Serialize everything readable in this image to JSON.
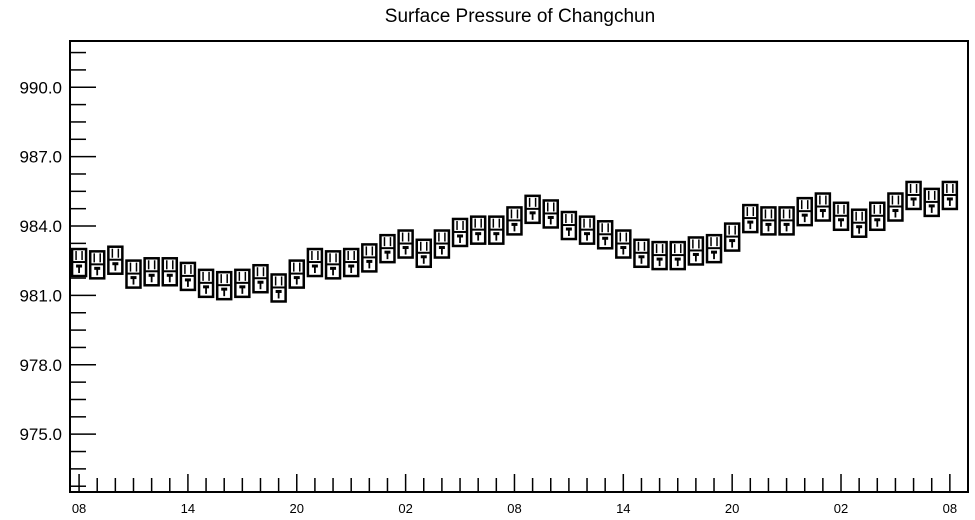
{
  "chart_data": {
    "type": "line",
    "title": "Surface Pressure of Changchun",
    "xlabel": "",
    "ylabel": "",
    "ylim": [
      972.5,
      992.0
    ],
    "yticks": [
      "975.0",
      "978.0",
      "981.0",
      "984.0",
      "987.0",
      "990.0"
    ],
    "ytick_values": [
      975.0,
      978.0,
      981.0,
      984.0,
      987.0,
      990.0
    ],
    "xtick_labels": [
      "08",
      "14",
      "20",
      "02",
      "08",
      "14",
      "20",
      "02",
      "08"
    ],
    "xtick_hours": [
      0,
      6,
      12,
      18,
      24,
      30,
      36,
      42,
      48
    ],
    "xlim": [
      -0.5,
      49.0
    ],
    "grid": false,
    "marker": "box-and-whisker",
    "series": [
      {
        "x": [
          0,
          1,
          2,
          3,
          4,
          5,
          6,
          7,
          8,
          9,
          10,
          11,
          12,
          13,
          14,
          15,
          16,
          17,
          18,
          19,
          20,
          21,
          22,
          23,
          24,
          25,
          26,
          27,
          28,
          29,
          30,
          31,
          32,
          33,
          34,
          35,
          36,
          37,
          38,
          39,
          40,
          41,
          42,
          43,
          44,
          45,
          46,
          47,
          48
        ],
        "values": [
          982.4,
          982.3,
          982.5,
          981.9,
          982.0,
          982.0,
          981.8,
          981.5,
          981.4,
          981.5,
          981.7,
          981.3,
          981.9,
          982.4,
          982.3,
          982.4,
          982.6,
          983.0,
          983.2,
          982.8,
          983.2,
          983.7,
          983.8,
          983.8,
          984.2,
          984.7,
          984.5,
          984.0,
          983.8,
          983.6,
          983.2,
          982.8,
          982.7,
          982.7,
          982.9,
          983.0,
          983.5,
          984.3,
          984.2,
          984.2,
          984.6,
          984.8,
          984.4,
          984.1,
          984.4,
          984.8,
          985.3,
          985.0,
          985.3
        ]
      }
    ]
  }
}
